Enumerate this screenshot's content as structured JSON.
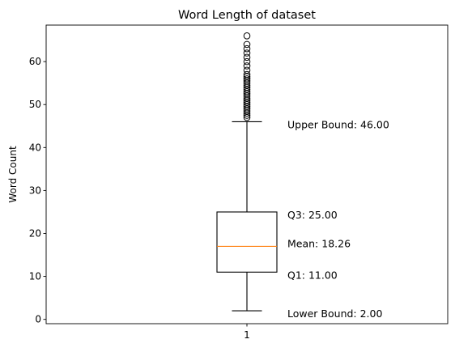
{
  "chart_data": {
    "type": "box",
    "title": "Word Length of dataset",
    "xlabel": "",
    "ylabel": "Word Count",
    "categories": [
      "1"
    ],
    "ylim": [
      -1,
      68.5
    ],
    "yticks": [
      0,
      10,
      20,
      30,
      40,
      50,
      60
    ],
    "grid": false,
    "box": {
      "whisker_low": 2,
      "q1": 11,
      "median": 17,
      "q3": 25,
      "whisker_high": 46,
      "outliers": [
        47,
        47.5,
        48,
        48.5,
        49,
        49.5,
        50,
        50.5,
        51,
        51.5,
        52,
        52.5,
        53,
        53.5,
        54,
        54.5,
        55,
        55.5,
        56,
        56.5,
        57,
        58,
        59,
        60,
        61,
        62,
        63,
        64,
        66
      ]
    },
    "annotations": [
      {
        "text": "Upper Bound: 46.00",
        "y": 45.3
      },
      {
        "text": "Q3: 25.00",
        "y": 24.3
      },
      {
        "text": "Mean: 18.26",
        "y": 17.6
      },
      {
        "text": "Q1: 11.00",
        "y": 10.3
      },
      {
        "text": "Lower Bound: 2.00",
        "y": 1.3
      }
    ],
    "colors": {
      "box": "#000000",
      "median": "#ff7f0e",
      "outlier": "#000000"
    }
  }
}
